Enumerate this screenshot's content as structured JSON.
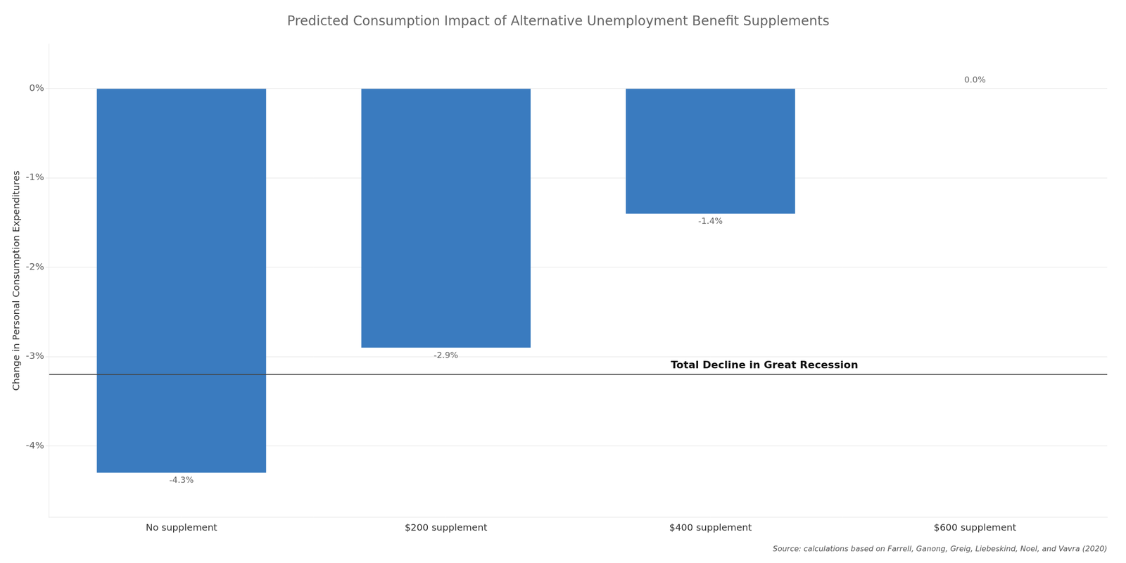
{
  "chart_data": {
    "type": "bar",
    "title": "Predicted Consumption Impact of Alternative Unemployment Benefit Supplements",
    "categories": [
      "No supplement",
      "$200 supplement",
      "$400 supplement",
      "$600 supplement"
    ],
    "values": [
      -4.3,
      -2.9,
      -1.4,
      0.0
    ],
    "value_labels": [
      "-4.3%",
      "-2.9%",
      "-1.4%",
      "0.0%"
    ],
    "data_labels": true,
    "color": "#3a7bbf",
    "ylabel": "Change in Personal Consumption Expenditures",
    "ylim": [
      -4.8,
      0.5
    ],
    "yticks": [
      {
        "value": 0,
        "label": "0%"
      },
      {
        "value": -1,
        "label": "-1%"
      },
      {
        "value": -2,
        "label": "-2%"
      },
      {
        "value": -3,
        "label": "-3%"
      },
      {
        "value": -4,
        "label": "-4%"
      }
    ],
    "grid": true,
    "annotations": [
      {
        "type": "hline",
        "y": -3.2,
        "label": "Total Decline in Great Recession",
        "color": "#444444"
      }
    ],
    "source": "Source: calculations based on Farrell, Ganong, Greig, Liebeskind, Noel, and Vavra (2020)"
  }
}
